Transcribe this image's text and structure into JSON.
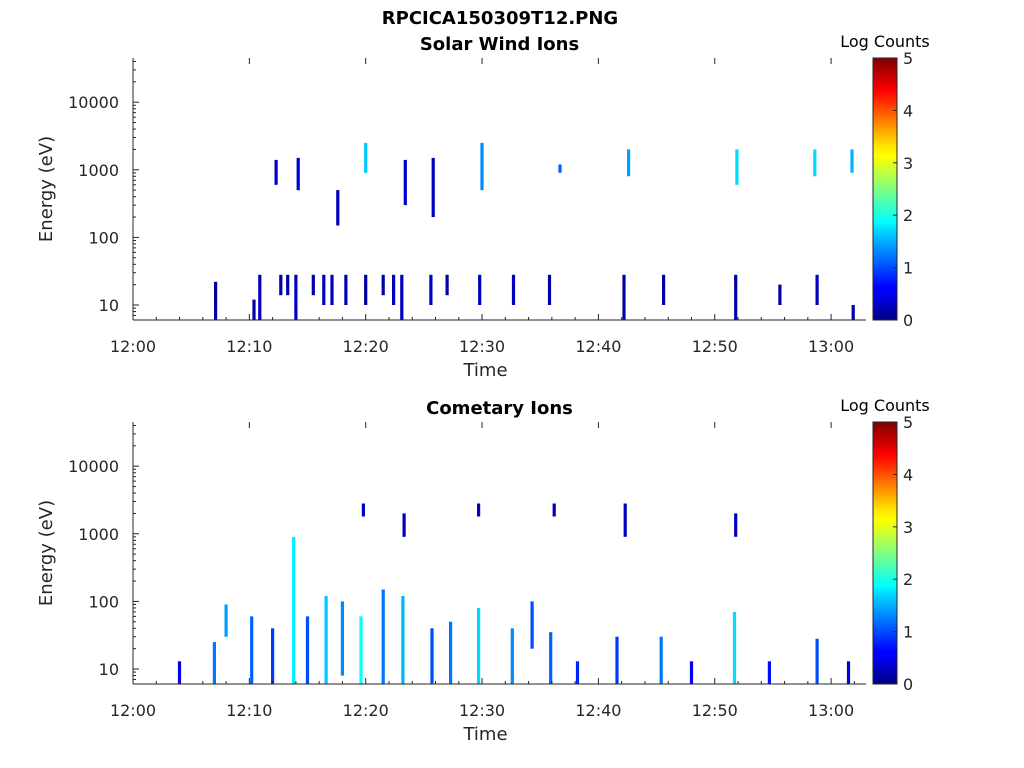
{
  "figure": {
    "title": "RPCICA150309T12.PNG"
  },
  "chart_data": [
    {
      "type": "heatmap",
      "title": "Solar Wind Ions",
      "xlabel": "Time",
      "ylabel": "Energy (eV)",
      "yscale": "log",
      "xlim": [
        "12:00",
        "13:03"
      ],
      "ylim": [
        6,
        45000
      ],
      "xticks": [
        "12:00",
        "12:10",
        "12:20",
        "12:30",
        "12:40",
        "12:50",
        "13:00"
      ],
      "yticks": [
        "10",
        "100",
        "1000",
        "10000"
      ],
      "colorbar": {
        "label": "Log Counts",
        "min": 0,
        "max": 5,
        "ticks": [
          "0",
          "1",
          "2",
          "3",
          "4",
          "5"
        ],
        "colormap": "jet"
      },
      "cells": [
        {
          "t": 7.1,
          "e0": 6,
          "e1": 10,
          "v": 0.2
        },
        {
          "t": 7.1,
          "e0": 10,
          "e1": 22,
          "v": 0.1
        },
        {
          "t": 10.4,
          "e0": 6,
          "e1": 12,
          "v": 0.2
        },
        {
          "t": 10.9,
          "e0": 6,
          "e1": 28,
          "v": 0.3
        },
        {
          "t": 12.7,
          "e0": 14,
          "e1": 28,
          "v": 0.2
        },
        {
          "t": 13.3,
          "e0": 14,
          "e1": 28,
          "v": 0.2
        },
        {
          "t": 14.0,
          "e0": 6,
          "e1": 28,
          "v": 0.3
        },
        {
          "t": 15.5,
          "e0": 14,
          "e1": 28,
          "v": 0.2
        },
        {
          "t": 16.4,
          "e0": 10,
          "e1": 28,
          "v": 0.3
        },
        {
          "t": 17.1,
          "e0": 10,
          "e1": 28,
          "v": 0.3
        },
        {
          "t": 18.3,
          "e0": 10,
          "e1": 28,
          "v": 0.2
        },
        {
          "t": 20.0,
          "e0": 10,
          "e1": 28,
          "v": 0.2
        },
        {
          "t": 21.5,
          "e0": 14,
          "e1": 28,
          "v": 0.2
        },
        {
          "t": 22.4,
          "e0": 10,
          "e1": 28,
          "v": 0.3
        },
        {
          "t": 23.1,
          "e0": 6,
          "e1": 28,
          "v": 0.3
        },
        {
          "t": 25.6,
          "e0": 10,
          "e1": 28,
          "v": 0.3
        },
        {
          "t": 27.0,
          "e0": 14,
          "e1": 28,
          "v": 0.2
        },
        {
          "t": 29.8,
          "e0": 10,
          "e1": 28,
          "v": 0.3
        },
        {
          "t": 32.7,
          "e0": 10,
          "e1": 28,
          "v": 0.3
        },
        {
          "t": 35.8,
          "e0": 10,
          "e1": 28,
          "v": 0.2
        },
        {
          "t": 42.2,
          "e0": 6,
          "e1": 28,
          "v": 0.2
        },
        {
          "t": 45.6,
          "e0": 10,
          "e1": 28,
          "v": 0.2
        },
        {
          "t": 51.8,
          "e0": 6,
          "e1": 28,
          "v": 0.2
        },
        {
          "t": 55.6,
          "e0": 10,
          "e1": 20,
          "v": 0.2
        },
        {
          "t": 58.8,
          "e0": 10,
          "e1": 28,
          "v": 0.3
        },
        {
          "t": 61.9,
          "e0": 6,
          "e1": 10,
          "v": 0.2
        },
        {
          "t": 12.3,
          "e0": 600,
          "e1": 1400,
          "v": 0.4
        },
        {
          "t": 14.2,
          "e0": 500,
          "e1": 1500,
          "v": 0.4
        },
        {
          "t": 17.6,
          "e0": 150,
          "e1": 500,
          "v": 0.3
        },
        {
          "t": 20.0,
          "e0": 900,
          "e1": 2500,
          "v": 1.6
        },
        {
          "t": 23.4,
          "e0": 300,
          "e1": 1400,
          "v": 0.4
        },
        {
          "t": 25.8,
          "e0": 200,
          "e1": 1500,
          "v": 0.3
        },
        {
          "t": 30.0,
          "e0": 500,
          "e1": 2500,
          "v": 1.3
        },
        {
          "t": 36.7,
          "e0": 900,
          "e1": 1200,
          "v": 1.1
        },
        {
          "t": 42.6,
          "e0": 800,
          "e1": 2000,
          "v": 1.4
        },
        {
          "t": 51.9,
          "e0": 600,
          "e1": 2000,
          "v": 1.7
        },
        {
          "t": 58.6,
          "e0": 800,
          "e1": 2000,
          "v": 1.7
        },
        {
          "t": 61.8,
          "e0": 900,
          "e1": 2000,
          "v": 1.5
        }
      ]
    },
    {
      "type": "heatmap",
      "title": "Cometary Ions",
      "xlabel": "Time",
      "ylabel": "Energy (eV)",
      "yscale": "log",
      "xlim": [
        "12:00",
        "13:03"
      ],
      "ylim": [
        6,
        45000
      ],
      "xticks": [
        "12:00",
        "12:10",
        "12:20",
        "12:30",
        "12:40",
        "12:50",
        "13:00"
      ],
      "yticks": [
        "10",
        "100",
        "1000",
        "10000"
      ],
      "colorbar": {
        "label": "Log Counts",
        "min": 0,
        "max": 5,
        "ticks": [
          "0",
          "1",
          "2",
          "3",
          "4",
          "5"
        ],
        "colormap": "jet"
      },
      "cells": [
        {
          "t": 4.0,
          "e0": 6,
          "e1": 13,
          "v": 0.5
        },
        {
          "t": 7.0,
          "e0": 6,
          "e1": 25,
          "v": 1.2
        },
        {
          "t": 8.0,
          "e0": 30,
          "e1": 90,
          "v": 1.4
        },
        {
          "t": 10.2,
          "e0": 6,
          "e1": 60,
          "v": 1.1
        },
        {
          "t": 12.0,
          "e0": 6,
          "e1": 40,
          "v": 0.9
        },
        {
          "t": 13.8,
          "e0": 6,
          "e1": 900,
          "v": 1.8
        },
        {
          "t": 15.0,
          "e0": 6,
          "e1": 60,
          "v": 1.0
        },
        {
          "t": 16.6,
          "e0": 6,
          "e1": 120,
          "v": 1.6
        },
        {
          "t": 18.0,
          "e0": 8,
          "e1": 100,
          "v": 1.3
        },
        {
          "t": 19.6,
          "e0": 6,
          "e1": 60,
          "v": 1.9
        },
        {
          "t": 21.5,
          "e0": 6,
          "e1": 150,
          "v": 1.2
        },
        {
          "t": 23.2,
          "e0": 6,
          "e1": 120,
          "v": 1.5
        },
        {
          "t": 25.7,
          "e0": 6,
          "e1": 40,
          "v": 1.0
        },
        {
          "t": 27.3,
          "e0": 6,
          "e1": 50,
          "v": 1.2
        },
        {
          "t": 29.7,
          "e0": 6,
          "e1": 80,
          "v": 1.7
        },
        {
          "t": 32.6,
          "e0": 6,
          "e1": 40,
          "v": 1.3
        },
        {
          "t": 34.3,
          "e0": 20,
          "e1": 100,
          "v": 1.0
        },
        {
          "t": 35.9,
          "e0": 6,
          "e1": 35,
          "v": 1.1
        },
        {
          "t": 38.2,
          "e0": 6,
          "e1": 13,
          "v": 0.8
        },
        {
          "t": 41.6,
          "e0": 6,
          "e1": 30,
          "v": 0.9
        },
        {
          "t": 45.4,
          "e0": 6,
          "e1": 30,
          "v": 1.2
        },
        {
          "t": 48.0,
          "e0": 6,
          "e1": 13,
          "v": 0.6
        },
        {
          "t": 51.7,
          "e0": 6,
          "e1": 70,
          "v": 1.7
        },
        {
          "t": 54.7,
          "e0": 6,
          "e1": 13,
          "v": 0.7
        },
        {
          "t": 58.8,
          "e0": 6,
          "e1": 28,
          "v": 1.0
        },
        {
          "t": 61.5,
          "e0": 6,
          "e1": 13,
          "v": 0.5
        },
        {
          "t": 19.8,
          "e0": 1800,
          "e1": 2800,
          "v": 0.3
        },
        {
          "t": 23.3,
          "e0": 900,
          "e1": 2000,
          "v": 0.3
        },
        {
          "t": 29.7,
          "e0": 1800,
          "e1": 2800,
          "v": 0.3
        },
        {
          "t": 36.2,
          "e0": 1800,
          "e1": 2800,
          "v": 0.3
        },
        {
          "t": 42.3,
          "e0": 900,
          "e1": 2800,
          "v": 0.3
        },
        {
          "t": 51.8,
          "e0": 900,
          "e1": 2000,
          "v": 0.3
        }
      ]
    }
  ]
}
